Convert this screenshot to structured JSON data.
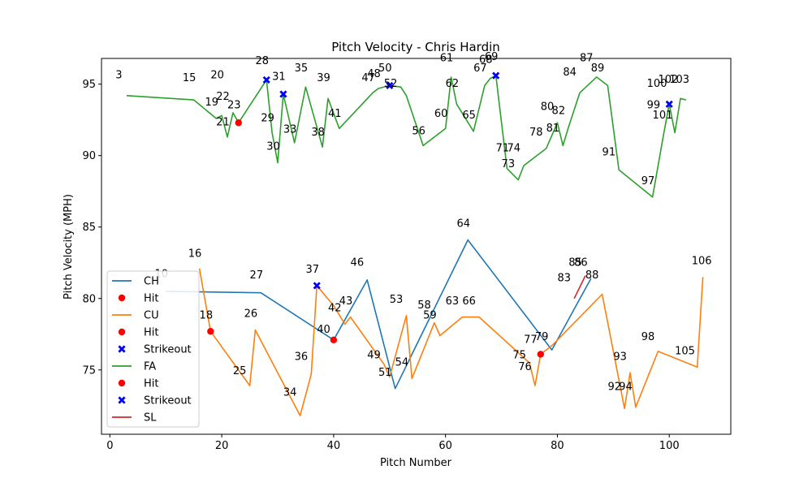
{
  "chart_data": {
    "type": "line",
    "title": "Pitch Velocity - Chris Hardin",
    "xlabel": "Pitch Number",
    "ylabel": "Pitch Velocity (MPH)",
    "xlim": [
      -1.5,
      111
    ],
    "ylim": [
      70.5,
      96.8
    ],
    "xticks": [
      0,
      20,
      40,
      60,
      80,
      100
    ],
    "yticks": [
      75,
      80,
      85,
      90,
      95
    ],
    "grid": false,
    "legend_position": "lower-left",
    "colors": {
      "CH": "#1f77b4",
      "CU": "#ff7f0e",
      "FA": "#2ca02c",
      "SL": "#d62728",
      "Hit": "#ff0000",
      "Strikeout": "#0000ff"
    },
    "series": [
      {
        "name": "CH",
        "color": "#1f77b4",
        "points": [
          [
            10,
            80.5
          ],
          [
            27,
            80.4
          ],
          [
            40,
            77.1
          ],
          [
            46,
            81.3
          ],
          [
            51,
            73.7
          ],
          [
            64,
            84.1
          ],
          [
            79,
            76.4
          ],
          [
            86,
            81.4
          ]
        ]
      },
      {
        "name": "CU",
        "color": "#ff7f0e",
        "points": [
          [
            16,
            82.1
          ],
          [
            18,
            77.7
          ],
          [
            25,
            73.9
          ],
          [
            26,
            77.8
          ],
          [
            34,
            71.8
          ],
          [
            36,
            74.7
          ],
          [
            37,
            80.9
          ],
          [
            40,
            79.5
          ],
          [
            42,
            78.2
          ],
          [
            43,
            78.7
          ],
          [
            49,
            75.4
          ],
          [
            50,
            74.5
          ],
          [
            53,
            78.8
          ],
          [
            54,
            74.4
          ],
          [
            58,
            78.3
          ],
          [
            59,
            77.4
          ],
          [
            63,
            78.7
          ],
          [
            66,
            78.7
          ],
          [
            75,
            75.5
          ],
          [
            76,
            73.9
          ],
          [
            77,
            76.1
          ],
          [
            79,
            76.7
          ],
          [
            88,
            80.3
          ],
          [
            92,
            72.3
          ],
          [
            93,
            74.8
          ],
          [
            94,
            72.4
          ],
          [
            98,
            76.3
          ],
          [
            105,
            75.2
          ],
          [
            106,
            81.5
          ]
        ]
      },
      {
        "name": "FA",
        "color": "#2ca02c",
        "points": [
          [
            3,
            94.2
          ],
          [
            15,
            93.9
          ],
          [
            19,
            92.6
          ],
          [
            20,
            92.8
          ],
          [
            21,
            91.3
          ],
          [
            22,
            93.0
          ],
          [
            23,
            92.3
          ],
          [
            28,
            95.3
          ],
          [
            29,
            91.6
          ],
          [
            30,
            89.5
          ],
          [
            31,
            94.3
          ],
          [
            33,
            90.9
          ],
          [
            35,
            94.8
          ],
          [
            38,
            90.6
          ],
          [
            39,
            94.0
          ],
          [
            41,
            91.9
          ],
          [
            47,
            94.4
          ],
          [
            48,
            94.7
          ],
          [
            50,
            94.9
          ],
          [
            52,
            94.8
          ],
          [
            53,
            94.2
          ],
          [
            56,
            90.7
          ],
          [
            60,
            91.9
          ],
          [
            61,
            95.5
          ],
          [
            62,
            93.6
          ],
          [
            65,
            91.7
          ],
          [
            67,
            94.9
          ],
          [
            68,
            95.4
          ],
          [
            69,
            95.6
          ],
          [
            71,
            89.1
          ],
          [
            73,
            88.3
          ],
          [
            74,
            89.3
          ],
          [
            78,
            90.5
          ],
          [
            80,
            92.3
          ],
          [
            81,
            90.7
          ],
          [
            82,
            92.0
          ],
          [
            84,
            94.4
          ],
          [
            87,
            95.5
          ],
          [
            89,
            94.9
          ],
          [
            91,
            89.0
          ],
          [
            97,
            87.1
          ],
          [
            99,
            91.5
          ],
          [
            100,
            93.6
          ],
          [
            101,
            91.6
          ],
          [
            102,
            94.0
          ],
          [
            103,
            93.9
          ]
        ]
      },
      {
        "name": "SL",
        "color": "#d62728",
        "points": [
          [
            83,
            80.0
          ],
          [
            85,
            81.6
          ]
        ]
      }
    ],
    "hits": [
      [
        18,
        77.7
      ],
      [
        23,
        92.3
      ],
      [
        40,
        77.1
      ],
      [
        77,
        76.1
      ]
    ],
    "strikeouts": [
      [
        28,
        95.3
      ],
      [
        31,
        94.3
      ],
      [
        37,
        80.9
      ],
      [
        50,
        94.9
      ],
      [
        69,
        95.6
      ],
      [
        100,
        93.6
      ]
    ],
    "point_labels": [
      {
        "text": "3",
        "x": 1,
        "y": 95.4
      },
      {
        "text": "15",
        "x": 13,
        "y": 95.2
      },
      {
        "text": "20",
        "x": 18,
        "y": 95.4
      },
      {
        "text": "19",
        "x": 17,
        "y": 93.5
      },
      {
        "text": "22",
        "x": 19,
        "y": 93.9
      },
      {
        "text": "23",
        "x": 21,
        "y": 93.3
      },
      {
        "text": "21",
        "x": 19,
        "y": 92.1
      },
      {
        "text": "28",
        "x": 26,
        "y": 96.4
      },
      {
        "text": "31",
        "x": 29,
        "y": 95.3
      },
      {
        "text": "35",
        "x": 33,
        "y": 95.9
      },
      {
        "text": "39",
        "x": 37,
        "y": 95.2
      },
      {
        "text": "29",
        "x": 27,
        "y": 92.4
      },
      {
        "text": "33",
        "x": 31,
        "y": 91.6
      },
      {
        "text": "38",
        "x": 36,
        "y": 91.4
      },
      {
        "text": "41",
        "x": 39,
        "y": 92.7
      },
      {
        "text": "30",
        "x": 28,
        "y": 90.4
      },
      {
        "text": "47",
        "x": 45,
        "y": 95.2
      },
      {
        "text": "48",
        "x": 46,
        "y": 95.5
      },
      {
        "text": "50",
        "x": 48,
        "y": 95.9
      },
      {
        "text": "52",
        "x": 49,
        "y": 94.8
      },
      {
        "text": "56",
        "x": 54,
        "y": 91.5
      },
      {
        "text": "61",
        "x": 59,
        "y": 96.6
      },
      {
        "text": "62",
        "x": 60,
        "y": 94.8
      },
      {
        "text": "60",
        "x": 58,
        "y": 92.7
      },
      {
        "text": "65",
        "x": 63,
        "y": 92.6
      },
      {
        "text": "67",
        "x": 65,
        "y": 95.9
      },
      {
        "text": "68",
        "x": 66,
        "y": 96.5
      },
      {
        "text": "69",
        "x": 67,
        "y": 96.7
      },
      {
        "text": "71",
        "x": 69,
        "y": 90.3
      },
      {
        "text": "74",
        "x": 71,
        "y": 90.3
      },
      {
        "text": "73",
        "x": 70,
        "y": 89.2
      },
      {
        "text": "84",
        "x": 81,
        "y": 95.6
      },
      {
        "text": "87",
        "x": 84,
        "y": 96.6
      },
      {
        "text": "89",
        "x": 86,
        "y": 95.9
      },
      {
        "text": "80",
        "x": 77,
        "y": 93.2
      },
      {
        "text": "82",
        "x": 79,
        "y": 92.9
      },
      {
        "text": "81",
        "x": 78,
        "y": 91.7
      },
      {
        "text": "78",
        "x": 75,
        "y": 91.4
      },
      {
        "text": "91",
        "x": 88,
        "y": 90.0
      },
      {
        "text": "97",
        "x": 95,
        "y": 88.0
      },
      {
        "text": "100",
        "x": 96,
        "y": 94.8
      },
      {
        "text": "102",
        "x": 98,
        "y": 95.1
      },
      {
        "text": "103",
        "x": 100,
        "y": 95.1
      },
      {
        "text": "99",
        "x": 96,
        "y": 93.3
      },
      {
        "text": "101",
        "x": 97,
        "y": 92.6
      },
      {
        "text": "64",
        "x": 62,
        "y": 85.0
      },
      {
        "text": "16",
        "x": 14,
        "y": 82.9
      },
      {
        "text": "10",
        "x": 8,
        "y": 81.5
      },
      {
        "text": "27",
        "x": 25,
        "y": 81.4
      },
      {
        "text": "37",
        "x": 35,
        "y": 81.8
      },
      {
        "text": "46",
        "x": 43,
        "y": 82.3
      },
      {
        "text": "85",
        "x": 82,
        "y": 82.3
      },
      {
        "text": "86",
        "x": 83,
        "y": 82.3
      },
      {
        "text": "88",
        "x": 85,
        "y": 81.4
      },
      {
        "text": "83",
        "x": 80,
        "y": 81.2
      },
      {
        "text": "106",
        "x": 104,
        "y": 82.4
      },
      {
        "text": "18",
        "x": 16,
        "y": 78.6
      },
      {
        "text": "26",
        "x": 24,
        "y": 78.7
      },
      {
        "text": "43",
        "x": 41,
        "y": 79.6
      },
      {
        "text": "42",
        "x": 39,
        "y": 79.1
      },
      {
        "text": "40",
        "x": 37,
        "y": 77.6
      },
      {
        "text": "53",
        "x": 50,
        "y": 79.7
      },
      {
        "text": "58",
        "x": 55,
        "y": 79.3
      },
      {
        "text": "59",
        "x": 56,
        "y": 78.6
      },
      {
        "text": "63",
        "x": 60,
        "y": 79.6
      },
      {
        "text": "66",
        "x": 63,
        "y": 79.6
      },
      {
        "text": "77",
        "x": 74,
        "y": 76.9
      },
      {
        "text": "79",
        "x": 76,
        "y": 77.1
      },
      {
        "text": "75",
        "x": 72,
        "y": 75.8
      },
      {
        "text": "76",
        "x": 73,
        "y": 75.0
      },
      {
        "text": "98",
        "x": 95,
        "y": 77.1
      },
      {
        "text": "36",
        "x": 33,
        "y": 75.7
      },
      {
        "text": "49",
        "x": 46,
        "y": 75.8
      },
      {
        "text": "54",
        "x": 51,
        "y": 75.3
      },
      {
        "text": "51",
        "x": 48,
        "y": 74.6
      },
      {
        "text": "25",
        "x": 22,
        "y": 74.7
      },
      {
        "text": "93",
        "x": 90,
        "y": 75.7
      },
      {
        "text": "105",
        "x": 101,
        "y": 76.1
      },
      {
        "text": "34",
        "x": 31,
        "y": 73.2
      },
      {
        "text": "92",
        "x": 89,
        "y": 73.6
      },
      {
        "text": "94",
        "x": 91,
        "y": 73.6
      }
    ],
    "legend": [
      {
        "label": "CH",
        "kind": "line",
        "color": "#1f77b4"
      },
      {
        "label": "Hit",
        "kind": "dot",
        "color": "#ff0000"
      },
      {
        "label": "CU",
        "kind": "line",
        "color": "#ff7f0e"
      },
      {
        "label": "Hit",
        "kind": "dot",
        "color": "#ff0000"
      },
      {
        "label": "Strikeout",
        "kind": "x",
        "color": "#0000ff"
      },
      {
        "label": "FA",
        "kind": "line",
        "color": "#2ca02c"
      },
      {
        "label": "Hit",
        "kind": "dot",
        "color": "#ff0000"
      },
      {
        "label": "Strikeout",
        "kind": "x",
        "color": "#0000ff"
      },
      {
        "label": "SL",
        "kind": "line",
        "color": "#d62728"
      }
    ]
  }
}
